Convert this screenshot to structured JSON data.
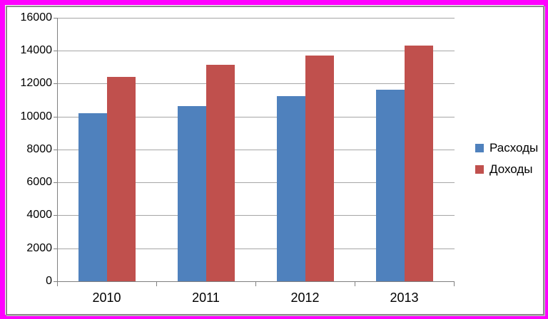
{
  "page": {
    "outer_border_color": "#ff00ff",
    "chart_background": "#ffffff",
    "chart_border_color": "#8c8c8c"
  },
  "chart_data": {
    "type": "bar",
    "categories": [
      "2010",
      "2011",
      "2012",
      "2013"
    ],
    "series": [
      {
        "name": "Расходы",
        "color": "#4f81bd",
        "values": [
          10200,
          10650,
          11250,
          11650
        ]
      },
      {
        "name": "Доходы",
        "color": "#c0504d",
        "values": [
          12400,
          13150,
          13700,
          14300
        ]
      }
    ],
    "title": "",
    "xlabel": "",
    "ylabel": "",
    "ylim": [
      0,
      16000
    ],
    "ytick_step": 2000,
    "ytick_labels": [
      "0",
      "2000",
      "4000",
      "6000",
      "8000",
      "10000",
      "12000",
      "14000",
      "16000"
    ],
    "grid": true,
    "legend_position": "right",
    "gridline_color": "#a6a6a6",
    "axis_color": "#808080",
    "text_color": "#000000"
  }
}
